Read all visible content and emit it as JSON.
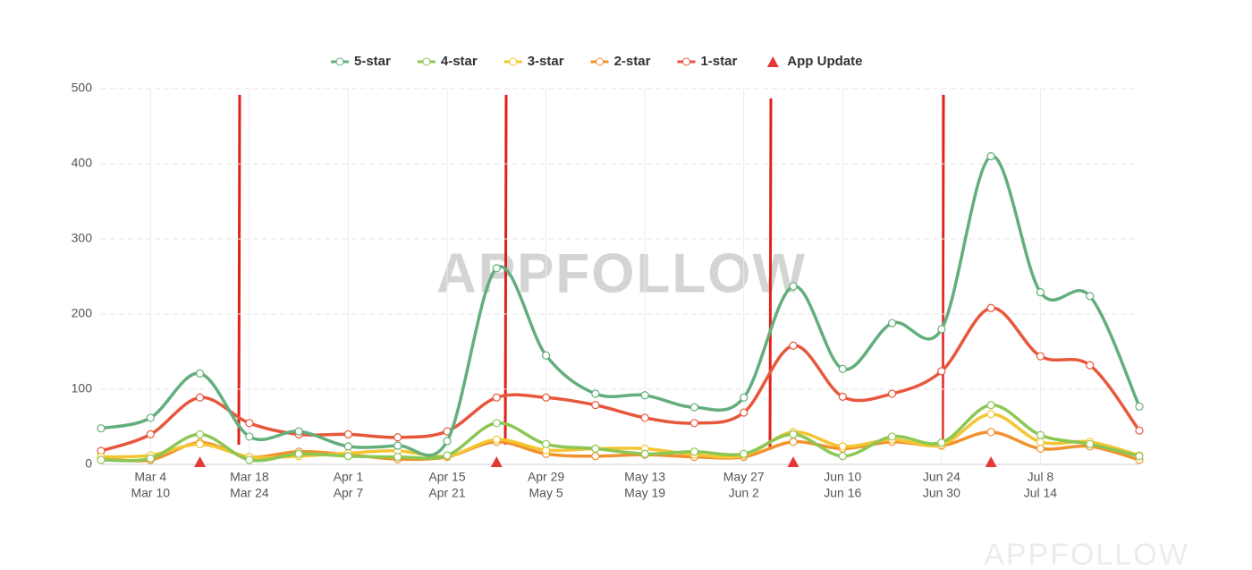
{
  "chart_data": {
    "type": "line",
    "watermark": "APPFOLLOW",
    "footer_watermark": "APPFOLLOW",
    "categories": [
      null,
      [
        "Mar 4",
        "Mar 10"
      ],
      null,
      [
        "Mar 18",
        "Mar 24"
      ],
      null,
      [
        "Apr 1",
        "Apr 7"
      ],
      null,
      [
        "Apr 15",
        "Apr 21"
      ],
      null,
      [
        "Apr 29",
        "May 5"
      ],
      null,
      [
        "May 13",
        "May 19"
      ],
      null,
      [
        "May 27",
        "Jun 2"
      ],
      null,
      [
        "Jun 10",
        "Jun 16"
      ],
      null,
      [
        "Jun 24",
        "Jun 30"
      ],
      null,
      [
        "Jul 8",
        "Jul 14"
      ],
      null,
      null
    ],
    "series": [
      {
        "name": "5-star",
        "color": "#62ae7c",
        "values": [
          48,
          62,
          121,
          37,
          44,
          24,
          25,
          31,
          261,
          145,
          94,
          92,
          76,
          89,
          237,
          127,
          188,
          180,
          410,
          229,
          224,
          77
        ]
      },
      {
        "name": "4-star",
        "color": "#8cc653",
        "values": [
          6,
          8,
          40,
          6,
          14,
          11,
          10,
          12,
          55,
          27,
          21,
          14,
          17,
          14,
          40,
          11,
          37,
          29,
          79,
          39,
          27,
          11
        ]
      },
      {
        "name": "3-star",
        "color": "#f4c531",
        "values": [
          10,
          12,
          27,
          10,
          11,
          15,
          18,
          11,
          33,
          19,
          21,
          21,
          13,
          12,
          43,
          24,
          33,
          26,
          67,
          30,
          30,
          12
        ]
      },
      {
        "name": "2-star",
        "color": "#f0922e",
        "values": [
          8,
          6,
          29,
          10,
          17,
          13,
          7,
          10,
          30,
          14,
          11,
          13,
          10,
          10,
          30,
          21,
          30,
          25,
          43,
          21,
          24,
          6
        ]
      },
      {
        "name": "1-star",
        "color": "#e8573c",
        "values": [
          18,
          40,
          89,
          55,
          40,
          40,
          36,
          44,
          89,
          89,
          79,
          62,
          55,
          69,
          158,
          90,
          94,
          124,
          208,
          144,
          132,
          45
        ]
      },
      {
        "name": "App Update",
        "color": "#e53935",
        "marker": "triangle",
        "values": [
          null,
          null,
          0,
          null,
          null,
          null,
          null,
          null,
          0,
          null,
          null,
          null,
          null,
          null,
          0,
          null,
          null,
          null,
          0,
          null,
          null,
          null
        ]
      }
    ],
    "ylim": [
      0,
      500
    ],
    "yticks": [
      0,
      100,
      200,
      300,
      400,
      500
    ],
    "grid": true
  }
}
